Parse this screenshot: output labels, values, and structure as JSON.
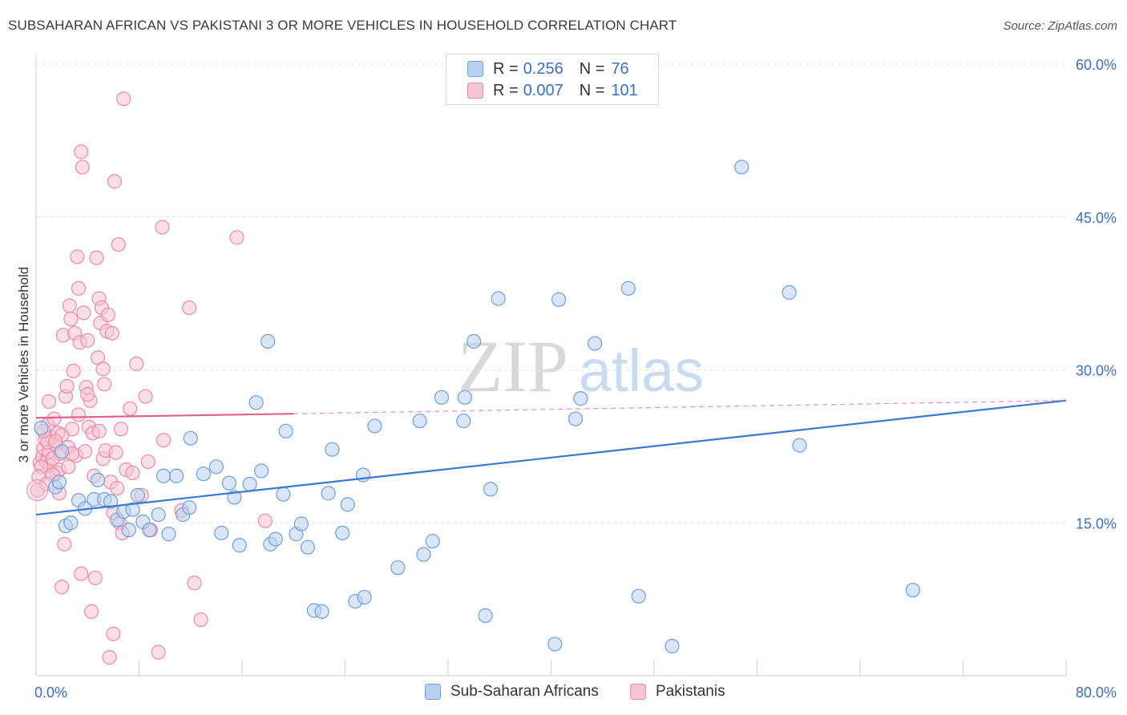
{
  "title": "SUBSAHARAN AFRICAN VS PAKISTANI 3 OR MORE VEHICLES IN HOUSEHOLD CORRELATION CHART",
  "source": "Source: ZipAtlas.com",
  "watermark": {
    "zip": "ZIP",
    "atlas": "atlas"
  },
  "legend": {
    "rows": [
      {
        "r_label": "R =",
        "r_value": "0.256",
        "n_label": "N =",
        "n_value": "76"
      },
      {
        "r_label": "R =",
        "r_value": "0.007",
        "n_label": "N =",
        "n_value": "101"
      }
    ]
  },
  "bottom_legend": [
    "Sub-Saharan Africans",
    "Pakistanis"
  ],
  "colors": {
    "blue_fill": "#b9d1f1",
    "blue_stroke": "#6f9fd8",
    "blue_line": "#3a78d4",
    "pink_fill": "#f7c4d4",
    "pink_stroke": "#e98aa9",
    "pink_line": "#e0608a",
    "tick_label": "#3a6fc4",
    "grid": "#e2e2e2"
  },
  "chart_data": {
    "type": "scatter",
    "title": "SUBSAHARAN AFRICAN VS PAKISTANI 3 OR MORE VEHICLES IN HOUSEHOLD CORRELATION CHART",
    "xlabel": "",
    "ylabel": "3 or more Vehicles in Household",
    "xlim": [
      0,
      80
    ],
    "ylim": [
      0,
      60
    ],
    "x_tick_labels": [
      "0.0%",
      "80.0%"
    ],
    "y_ticks": [
      15,
      30,
      45,
      60
    ],
    "y_tick_labels": [
      "15.0%",
      "30.0%",
      "45.0%",
      "60.0%"
    ],
    "grid": true,
    "legend_position": "top-center",
    "series": [
      {
        "name": "Sub-Saharan Africans",
        "color": "#6f9fd8",
        "trend": {
          "x": [
            0,
            80
          ],
          "y": [
            15.8,
            27.0
          ],
          "style": "solid"
        },
        "points": [
          [
            1.5,
            18.5
          ],
          [
            1.8,
            19.0
          ],
          [
            2.0,
            22.0
          ],
          [
            2.3,
            14.7
          ],
          [
            2.7,
            15.0
          ],
          [
            3.3,
            17.2
          ],
          [
            3.8,
            16.4
          ],
          [
            4.5,
            17.3
          ],
          [
            4.8,
            19.2
          ],
          [
            5.3,
            17.3
          ],
          [
            5.8,
            17.1
          ],
          [
            6.3,
            15.3
          ],
          [
            6.8,
            16.1
          ],
          [
            7.2,
            14.3
          ],
          [
            7.5,
            16.3
          ],
          [
            7.9,
            17.7
          ],
          [
            8.3,
            15.1
          ],
          [
            8.8,
            14.3
          ],
          [
            9.5,
            15.8
          ],
          [
            9.9,
            19.6
          ],
          [
            10.3,
            13.9
          ],
          [
            10.9,
            19.6
          ],
          [
            11.4,
            15.8
          ],
          [
            11.9,
            16.5
          ],
          [
            12.0,
            23.3
          ],
          [
            13.0,
            19.8
          ],
          [
            14.0,
            20.5
          ],
          [
            14.4,
            14.0
          ],
          [
            15.0,
            18.9
          ],
          [
            15.4,
            17.5
          ],
          [
            15.8,
            12.8
          ],
          [
            16.6,
            18.8
          ],
          [
            17.1,
            26.8
          ],
          [
            17.5,
            20.1
          ],
          [
            18.0,
            32.8
          ],
          [
            18.2,
            12.9
          ],
          [
            18.6,
            13.4
          ],
          [
            19.2,
            17.8
          ],
          [
            19.4,
            24.0
          ],
          [
            20.2,
            13.9
          ],
          [
            20.6,
            14.9
          ],
          [
            21.1,
            12.6
          ],
          [
            21.6,
            6.4
          ],
          [
            22.2,
            6.3
          ],
          [
            22.7,
            17.9
          ],
          [
            23.0,
            22.2
          ],
          [
            23.8,
            14.0
          ],
          [
            24.2,
            16.8
          ],
          [
            24.8,
            7.3
          ],
          [
            25.4,
            19.7
          ],
          [
            25.5,
            7.7
          ],
          [
            26.3,
            24.5
          ],
          [
            28.1,
            10.6
          ],
          [
            29.8,
            25.0
          ],
          [
            30.1,
            11.9
          ],
          [
            30.8,
            13.2
          ],
          [
            31.5,
            27.3
          ],
          [
            33.2,
            25.0
          ],
          [
            33.3,
            27.3
          ],
          [
            34.0,
            32.8
          ],
          [
            34.9,
            5.9
          ],
          [
            35.3,
            18.3
          ],
          [
            35.9,
            37.0
          ],
          [
            40.3,
            3.1
          ],
          [
            40.6,
            36.9
          ],
          [
            41.9,
            25.2
          ],
          [
            42.3,
            27.2
          ],
          [
            43.4,
            32.6
          ],
          [
            46.0,
            38.0
          ],
          [
            46.8,
            7.8
          ],
          [
            49.4,
            2.9
          ],
          [
            54.8,
            49.9
          ],
          [
            58.5,
            37.6
          ],
          [
            59.3,
            22.6
          ],
          [
            68.1,
            8.4
          ],
          [
            0.4,
            24.3
          ]
        ]
      },
      {
        "name": "Pakistanis",
        "color": "#e98aa9",
        "trend": {
          "x": [
            0,
            20
          ],
          "y": [
            25.3,
            25.7
          ],
          "style": "solid",
          "extended_dashed_to": [
            80,
            27.0
          ]
        },
        "points": [
          [
            0.1,
            18.2
          ],
          [
            0.3,
            20.9
          ],
          [
            0.5,
            21.5
          ],
          [
            0.6,
            22.3
          ],
          [
            0.7,
            23.2
          ],
          [
            0.8,
            21.0
          ],
          [
            0.9,
            24.6
          ],
          [
            1.0,
            22.0
          ],
          [
            1.1,
            20.6
          ],
          [
            1.2,
            23.4
          ],
          [
            1.3,
            21.3
          ],
          [
            1.4,
            25.2
          ],
          [
            1.5,
            22.7
          ],
          [
            1.6,
            19.9
          ],
          [
            1.7,
            23.8
          ],
          [
            1.8,
            20.2
          ],
          [
            1.9,
            21.8
          ],
          [
            2.0,
            8.7
          ],
          [
            2.1,
            33.4
          ],
          [
            2.2,
            12.9
          ],
          [
            2.3,
            27.4
          ],
          [
            2.4,
            28.4
          ],
          [
            2.5,
            22.4
          ],
          [
            2.6,
            36.3
          ],
          [
            2.7,
            35.0
          ],
          [
            2.8,
            24.2
          ],
          [
            2.9,
            29.9
          ],
          [
            3.0,
            33.6
          ],
          [
            3.1,
            21.6
          ],
          [
            3.2,
            41.1
          ],
          [
            3.3,
            38.0
          ],
          [
            3.4,
            32.7
          ],
          [
            3.5,
            51.4
          ],
          [
            3.6,
            49.9
          ],
          [
            3.7,
            35.6
          ],
          [
            3.8,
            22.0
          ],
          [
            3.9,
            28.3
          ],
          [
            4.0,
            32.9
          ],
          [
            4.1,
            24.4
          ],
          [
            4.2,
            27.0
          ],
          [
            4.3,
            6.3
          ],
          [
            4.4,
            23.8
          ],
          [
            4.5,
            19.6
          ],
          [
            4.6,
            9.6
          ],
          [
            4.7,
            41.0
          ],
          [
            4.8,
            31.2
          ],
          [
            4.9,
            37.0
          ],
          [
            5.0,
            34.6
          ],
          [
            5.1,
            36.1
          ],
          [
            5.2,
            21.3
          ],
          [
            5.3,
            28.6
          ],
          [
            5.4,
            22.1
          ],
          [
            5.5,
            33.8
          ],
          [
            5.6,
            35.4
          ],
          [
            5.7,
            1.8
          ],
          [
            5.8,
            19.0
          ],
          [
            5.9,
            33.6
          ],
          [
            6.0,
            4.1
          ],
          [
            6.1,
            48.5
          ],
          [
            6.2,
            21.9
          ],
          [
            6.3,
            18.4
          ],
          [
            6.4,
            42.3
          ],
          [
            6.5,
            15.0
          ],
          [
            6.6,
            24.2
          ],
          [
            6.7,
            14.0
          ],
          [
            6.8,
            56.6
          ],
          [
            7.0,
            20.2
          ],
          [
            7.3,
            26.2
          ],
          [
            7.8,
            30.6
          ],
          [
            8.2,
            17.7
          ],
          [
            8.5,
            27.4
          ],
          [
            8.7,
            21.0
          ],
          [
            8.9,
            14.3
          ],
          [
            9.5,
            2.3
          ],
          [
            9.9,
            23.1
          ],
          [
            9.8,
            44.0
          ],
          [
            11.3,
            16.2
          ],
          [
            11.9,
            36.1
          ],
          [
            12.3,
            9.1
          ],
          [
            12.8,
            5.5
          ],
          [
            15.6,
            43.0
          ],
          [
            17.8,
            15.2
          ],
          [
            1.0,
            26.9
          ],
          [
            2.0,
            23.6
          ],
          [
            1.3,
            19.7
          ],
          [
            0.4,
            20.5
          ],
          [
            0.9,
            22.9
          ],
          [
            3.5,
            10.0
          ],
          [
            2.8,
            21.8
          ],
          [
            1.5,
            23.0
          ],
          [
            0.6,
            24.0
          ],
          [
            0.2,
            19.5
          ],
          [
            4.0,
            27.6
          ],
          [
            5.2,
            30.1
          ],
          [
            3.3,
            25.6
          ],
          [
            2.5,
            20.5
          ],
          [
            1.8,
            17.9
          ],
          [
            6.0,
            16.0
          ],
          [
            7.5,
            19.9
          ],
          [
            0.8,
            18.8
          ],
          [
            4.9,
            24.0
          ]
        ]
      }
    ]
  }
}
